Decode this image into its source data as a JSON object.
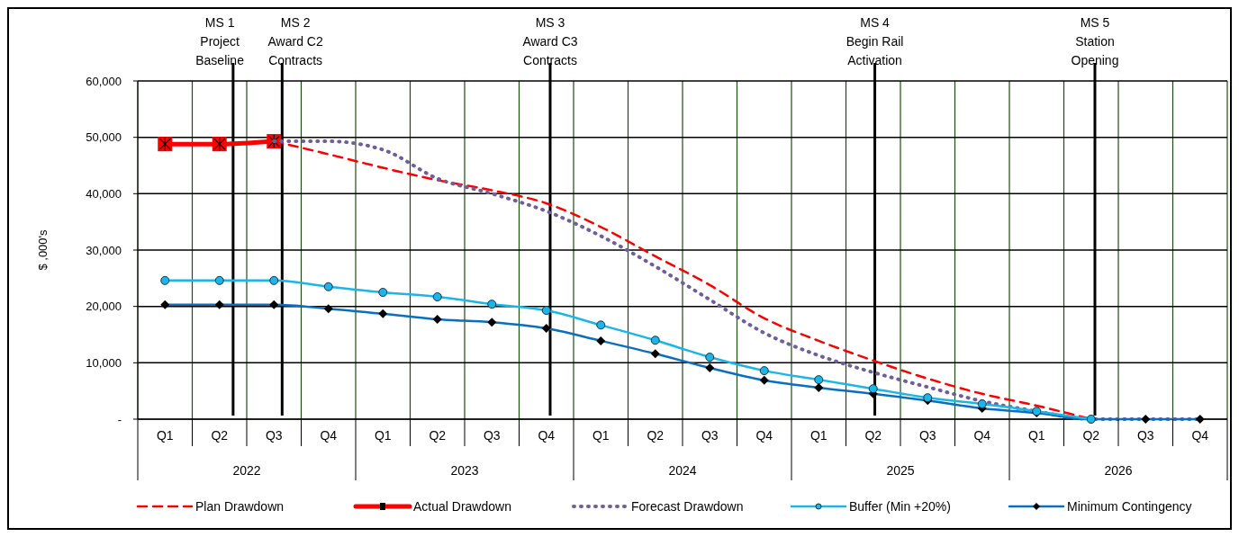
{
  "chart_data": {
    "type": "line",
    "ylabel": "$ ,000's",
    "categories": [
      "Q1",
      "Q2",
      "Q3",
      "Q4",
      "Q1",
      "Q2",
      "Q3",
      "Q4",
      "Q1",
      "Q2",
      "Q3",
      "Q4",
      "Q1",
      "Q2",
      "Q3",
      "Q4",
      "Q1",
      "Q2",
      "Q3",
      "Q4"
    ],
    "annotations": [
      "2022",
      "2023",
      "2024",
      "2025",
      "2026",
      "MS 1\nProject\nBaseline",
      "MS 2\nAward C2\nContracts",
      "MS 3\nAward C3\nContracts",
      "MS 4\nBegin Rail\nActivation",
      "MS 5\nStation\nOpening"
    ],
    "ylim": [
      0,
      60000
    ],
    "yticks": [
      {
        "value": 0,
        "label": "-"
      },
      {
        "value": 10000,
        "label": "10,000"
      },
      {
        "value": 20000,
        "label": "20,000"
      },
      {
        "value": 30000,
        "label": "30,000"
      },
      {
        "value": 40000,
        "label": "40,000"
      },
      {
        "value": 50000,
        "label": "50,000"
      },
      {
        "value": 60000,
        "label": "60,000"
      }
    ],
    "grid": true,
    "legend": "bottom",
    "series": [
      {
        "name": "Plan Drawdown",
        "color": "#ff0000",
        "line_style": "dashed",
        "marker": "none",
        "values": [
          null,
          null,
          49300,
          47000,
          44600,
          42400,
          40600,
          38300,
          34100,
          28900,
          23800,
          17900,
          13900,
          10400,
          7200,
          4500,
          2400,
          0,
          null,
          null
        ]
      },
      {
        "name": "Actual Drawdown",
        "color": "#ff0000",
        "line_style": "solid",
        "marker": "square",
        "values": [
          48800,
          48800,
          49300,
          null,
          null,
          null,
          null,
          null,
          null,
          null,
          null,
          null,
          null,
          null,
          null,
          null,
          null,
          null,
          null,
          null
        ]
      },
      {
        "name": "Forecast Drawdown",
        "color": "#6f5e9a",
        "line_style": "dotted",
        "marker": "none",
        "values": [
          null,
          null,
          49300,
          49300,
          47800,
          42700,
          40000,
          36900,
          32500,
          27100,
          21200,
          15300,
          11300,
          8300,
          5700,
          3200,
          1400,
          0,
          0,
          0
        ]
      },
      {
        "name": "Buffer (Min +20%)",
        "color": "#1ab6ea",
        "line_style": "solid",
        "marker": "circle",
        "values": [
          24600,
          24600,
          24600,
          23500,
          22500,
          21700,
          20400,
          19300,
          16700,
          14000,
          11000,
          8600,
          7000,
          5400,
          3800,
          2700,
          1400,
          0,
          null,
          null
        ]
      },
      {
        "name": "Minimum Contingency",
        "color": "#0a6fc0",
        "line_style": "solid",
        "marker": "diamond",
        "values": [
          20300,
          20300,
          20300,
          19600,
          18700,
          17700,
          17200,
          16100,
          13900,
          11600,
          9100,
          6900,
          5600,
          4500,
          3300,
          1900,
          1100,
          0,
          0,
          0
        ]
      }
    ]
  }
}
